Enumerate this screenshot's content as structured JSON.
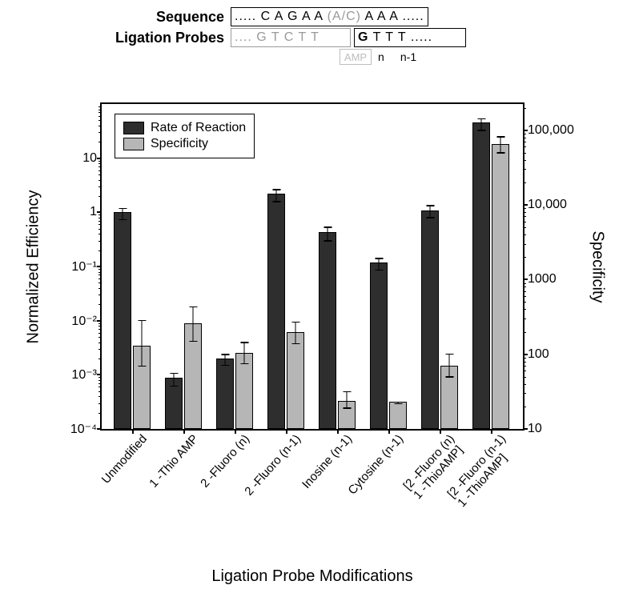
{
  "header": {
    "sequence_label": "Sequence",
    "probes_label": "Ligation Probes",
    "sequence_prefix": "..... C  A  G  A  A",
    "sequence_variable": "(A/C)",
    "sequence_suffix": "A  A  A .....",
    "probe_left": ".... G  T  C  T  T",
    "probe_right_g": "G",
    "probe_right_rest": "  T  T  T .....",
    "amp_label": "AMP",
    "n_label": "n",
    "n1_label": "n-1"
  },
  "chart": {
    "type": "bar",
    "dark_color": "#2e2e2e",
    "light_color": "#b6b6b6",
    "background_color": "#ffffff",
    "axis_color": "#000000",
    "legend": {
      "dark": "Rate of Reaction",
      "light": "Specificity"
    },
    "y_left": {
      "label": "Normalized Efficiency",
      "log_min_exp": -4,
      "log_max_exp": 2,
      "ticks": [
        {
          "exp": -4,
          "label": "10⁻⁴"
        },
        {
          "exp": -3,
          "label": "10⁻³"
        },
        {
          "exp": -2,
          "label": "10⁻²"
        },
        {
          "exp": -1,
          "label": "10⁻¹"
        },
        {
          "exp": 0,
          "label": "1"
        },
        {
          "exp": 1,
          "label": "10"
        }
      ]
    },
    "y_right": {
      "label": "Specificity",
      "log_min": 1,
      "log_max": 5.35,
      "ticks": [
        {
          "logv": 1,
          "label": "10"
        },
        {
          "logv": 2,
          "label": "100"
        },
        {
          "logv": 3,
          "label": "1000"
        },
        {
          "logv": 4,
          "label": "10,000"
        },
        {
          "logv": 5,
          "label": "100,000"
        }
      ]
    },
    "x_label": "Ligation Probe Modifications",
    "categories": [
      {
        "label": "Unmodified",
        "rate": 1.0,
        "rate_err": 0.26,
        "spec": 130,
        "spec_err_hi": 295,
        "spec_err_lo": 70
      },
      {
        "label": "1 -Thio AMP",
        "rate": 0.00088,
        "rate_err": 0.00026,
        "spec": 260,
        "spec_err_hi": 450,
        "spec_err_lo": 150
      },
      {
        "label": "2 -Fluoro (n)",
        "rate": 0.002,
        "rate_err": 0.0005,
        "spec": 105,
        "spec_err_hi": 150,
        "spec_err_lo": 75
      },
      {
        "label": "2 -Fluoro (n-1)",
        "rate": 2.2,
        "rate_err": 0.6,
        "spec": 200,
        "spec_err_hi": 280,
        "spec_err_lo": 140
      },
      {
        "label": "Inosine (n-1)",
        "rate": 0.43,
        "rate_err": 0.13,
        "spec": 24,
        "spec_err_hi": 33,
        "spec_err_lo": 19
      },
      {
        "label": "Cytosine (n-1)",
        "rate": 0.118,
        "rate_err": 0.032,
        "spec": 23,
        "spec_err_hi": 24,
        "spec_err_lo": 22
      },
      {
        "label": "[2 -Fluoro (n)\n1 -ThioAMP]",
        "rate": 1.1,
        "rate_err": 0.3,
        "spec": 70,
        "spec_err_hi": 105,
        "spec_err_lo": 50
      },
      {
        "label": "[2 -Fluoro (n-1)\n1 -ThioAMP]",
        "rate": 45,
        "rate_err": 12,
        "spec": 65000,
        "spec_err_hi": 85000,
        "spec_err_lo": 50000
      }
    ]
  }
}
